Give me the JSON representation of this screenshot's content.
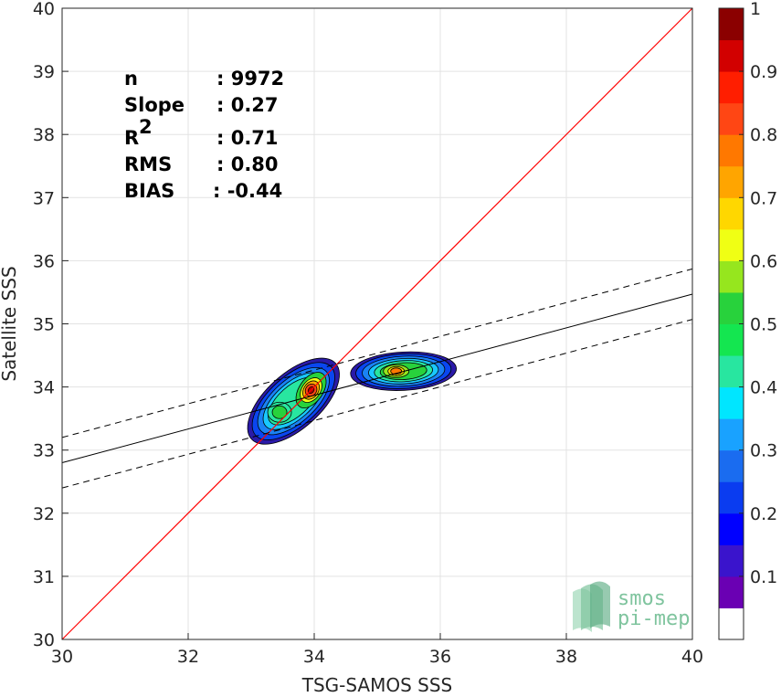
{
  "chart_data": {
    "type": "scatter",
    "subtype": "density-contour",
    "xlabel": "TSG-SAMOS SSS",
    "ylabel": "Satellite SSS",
    "xlim": [
      30,
      40
    ],
    "ylim": [
      30,
      40
    ],
    "xticks": [
      "30",
      "32",
      "34",
      "36",
      "38",
      "40"
    ],
    "yticks": [
      "30",
      "31",
      "32",
      "33",
      "34",
      "35",
      "36",
      "37",
      "38",
      "39",
      "40"
    ],
    "grid": true,
    "stats": [
      {
        "label": "n",
        "value": ": 9972"
      },
      {
        "label": "Slope",
        "value": ": 0.27"
      },
      {
        "label": "R",
        "sup": "2",
        "value": ": 0.71"
      },
      {
        "label": "RMS",
        "value": ": 0.80"
      },
      {
        "label": "BIAS",
        "value": ": -0.44"
      }
    ],
    "identity_line": {
      "from": [
        30,
        30
      ],
      "to": [
        40,
        40
      ],
      "color": "#ff0000"
    },
    "fit_line": {
      "from": [
        30,
        32.8
      ],
      "to": [
        40,
        35.47
      ],
      "color": "#000000"
    },
    "fit_bounds": [
      {
        "from": [
          30,
          33.2
        ],
        "to": [
          40,
          35.87
        ]
      },
      {
        "from": [
          30,
          32.4
        ],
        "to": [
          40,
          35.07
        ]
      }
    ],
    "density_clusters": [
      {
        "center": [
          33.95,
          33.95
        ],
        "peak": 0.85
      },
      {
        "center": [
          33.45,
          33.6
        ],
        "peak": 0.5
      },
      {
        "center": [
          35.3,
          34.25
        ],
        "peak": 0.75
      }
    ],
    "colorbar": {
      "range": [
        0,
        1
      ],
      "ticks": [
        "0.1",
        "0.2",
        "0.3",
        "0.4",
        "0.5",
        "0.6",
        "0.7",
        "0.8",
        "0.9",
        "1"
      ],
      "colors": [
        "#ffffff",
        "#6a00b3",
        "#3a14cc",
        "#0000ff",
        "#0a3cf0",
        "#1a6cf0",
        "#19a2ff",
        "#00e6ff",
        "#28e6a0",
        "#14e650",
        "#28d23c",
        "#96e61e",
        "#f0ff14",
        "#ffd700",
        "#ffa500",
        "#ff7800",
        "#ff4614",
        "#ff1e00",
        "#d20000",
        "#8b0000"
      ]
    }
  },
  "logo": {
    "line1": "smos",
    "line2": "pi-mep"
  }
}
